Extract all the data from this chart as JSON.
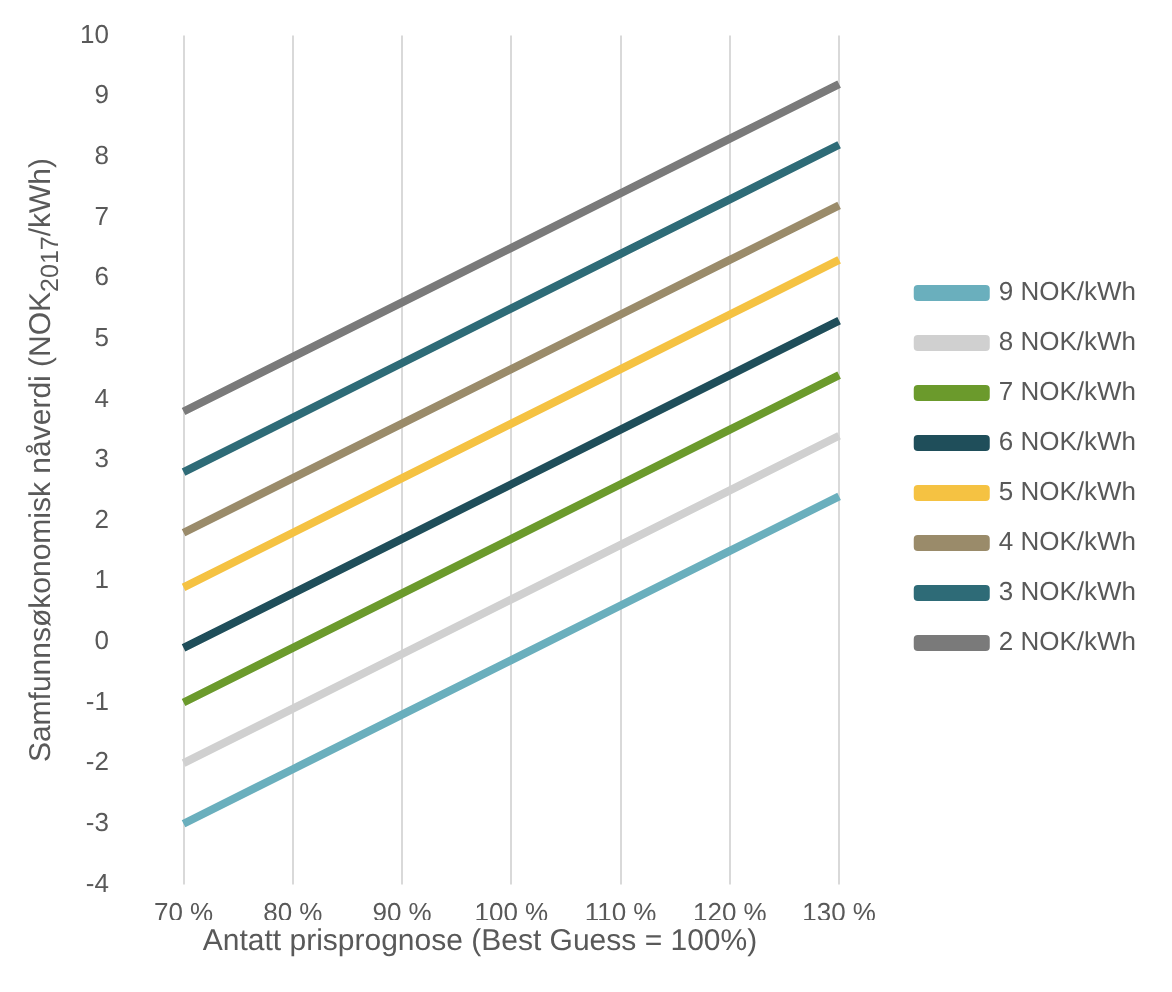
{
  "chart_data": {
    "type": "line",
    "xlabel": "Antatt prisprognose (Best Guess = 100%)",
    "ylabel": "Samfunnsøkonomisk nåverdi (NOK$_{2017}$/kWh)",
    "categories": [
      "70 %",
      "80 %",
      "90 %",
      "100 %",
      "110 %",
      "120 %",
      "130 %"
    ],
    "series": [
      {
        "name": "9 NOK/kWh",
        "color": "#6aafbd",
        "values": [
          -3.0,
          -2.1,
          -1.2,
          -0.3,
          0.6,
          1.5,
          2.4
        ]
      },
      {
        "name": "8 NOK/kWh",
        "color": "#d0d0d0",
        "values": [
          -2.0,
          -1.1,
          -0.2,
          0.7,
          1.6,
          2.5,
          3.4
        ]
      },
      {
        "name": "7 NOK/kWh",
        "color": "#6b9a2c",
        "values": [
          -1.0,
          -0.1,
          0.8,
          1.7,
          2.6,
          3.5,
          4.4
        ]
      },
      {
        "name": "6 NOK/kWh",
        "color": "#1f4e5a",
        "values": [
          -0.1,
          0.8,
          1.7,
          2.6,
          3.5,
          4.4,
          5.3
        ]
      },
      {
        "name": "5 NOK/kWh",
        "color": "#f5c242",
        "values": [
          0.9,
          1.8,
          2.7,
          3.6,
          4.5,
          5.4,
          6.3
        ]
      },
      {
        "name": "4 NOK/kWh",
        "color": "#9a8b6a",
        "values": [
          1.8,
          2.7,
          3.6,
          4.5,
          5.4,
          6.3,
          7.2
        ]
      },
      {
        "name": "3 NOK/kWh",
        "color": "#2e6b77",
        "values": [
          2.8,
          3.7,
          4.6,
          5.5,
          6.4,
          7.3,
          8.2
        ]
      },
      {
        "name": "2 NOK/kWh",
        "color": "#7a7a7a",
        "values": [
          3.8,
          4.7,
          5.6,
          6.5,
          7.4,
          8.3,
          9.2
        ]
      }
    ],
    "ylim": [
      -4,
      10
    ],
    "yticks": [
      -4,
      -3,
      -2,
      -1,
      0,
      1,
      2,
      3,
      4,
      5,
      6,
      7,
      8,
      9,
      10
    ],
    "grid": "x",
    "legend": "right",
    "marker": "none",
    "line_style": "solid"
  }
}
